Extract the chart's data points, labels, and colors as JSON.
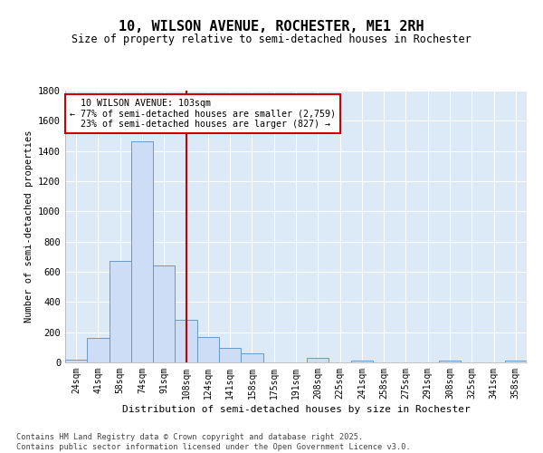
{
  "title_line1": "10, WILSON AVENUE, ROCHESTER, ME1 2RH",
  "title_line2": "Size of property relative to semi-detached houses in Rochester",
  "xlabel": "Distribution of semi-detached houses by size in Rochester",
  "ylabel": "Number of semi-detached properties",
  "bar_color": "#ccddf5",
  "bar_edge_color": "#6699cc",
  "categories": [
    "24sqm",
    "41sqm",
    "58sqm",
    "74sqm",
    "91sqm",
    "108sqm",
    "124sqm",
    "141sqm",
    "158sqm",
    "175sqm",
    "191sqm",
    "208sqm",
    "225sqm",
    "241sqm",
    "258sqm",
    "275sqm",
    "291sqm",
    "308sqm",
    "325sqm",
    "341sqm",
    "358sqm"
  ],
  "values": [
    20,
    160,
    670,
    1465,
    640,
    285,
    170,
    95,
    60,
    0,
    0,
    30,
    0,
    15,
    0,
    0,
    0,
    10,
    0,
    0,
    10
  ],
  "property_label": "10 WILSON AVENUE: 103sqm",
  "pct_smaller": 77,
  "count_smaller": 2759,
  "pct_larger": 23,
  "count_larger": 827,
  "vline_position": 5.0,
  "ylim": [
    0,
    1800
  ],
  "yticks": [
    0,
    200,
    400,
    600,
    800,
    1000,
    1200,
    1400,
    1600,
    1800
  ],
  "figure_bg": "#ffffff",
  "axes_bg": "#dce9f7",
  "grid_color": "#ffffff",
  "annotation_box_bg": "#ffffff",
  "annotation_box_edge": "#cc0000",
  "vline_color": "#cc0000",
  "footnote1": "Contains HM Land Registry data © Crown copyright and database right 2025.",
  "footnote2": "Contains public sector information licensed under the Open Government Licence v3.0."
}
